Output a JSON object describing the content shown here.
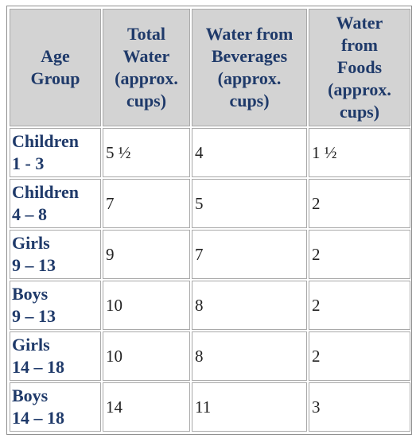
{
  "table": {
    "headers": [
      [
        "Age",
        "Group"
      ],
      [
        "Total",
        "Water",
        "(approx.",
        "cups)"
      ],
      [
        "Water from",
        "Beverages",
        "(approx.",
        "cups)"
      ],
      [
        "Water",
        "from",
        "Foods",
        "(approx.",
        "cups)"
      ]
    ],
    "rows": [
      {
        "age": [
          "Children",
          "1 - 3"
        ],
        "total": "5 ½",
        "beverages": "4",
        "foods": "1 ½"
      },
      {
        "age": [
          "Children",
          "4 – 8"
        ],
        "total": "7",
        "beverages": "5",
        "foods": "2"
      },
      {
        "age": [
          "Girls",
          "9 – 13"
        ],
        "total": "9",
        "beverages": "7",
        "foods": "2"
      },
      {
        "age": [
          "Boys",
          "9 – 13"
        ],
        "total": "10",
        "beverages": "8",
        "foods": "2"
      },
      {
        "age": [
          "Girls",
          "14 – 18"
        ],
        "total": "10",
        "beverages": "8",
        "foods": "2"
      },
      {
        "age": [
          "Boys",
          "14 – 18"
        ],
        "total": "14",
        "beverages": "11",
        "foods": "3"
      }
    ]
  },
  "colors": {
    "header_bg": "#d3d3d3",
    "header_text": "#1f3a6a",
    "age_text": "#1f3a6a",
    "cell_text": "#222222",
    "border": "#a9a9a9"
  }
}
